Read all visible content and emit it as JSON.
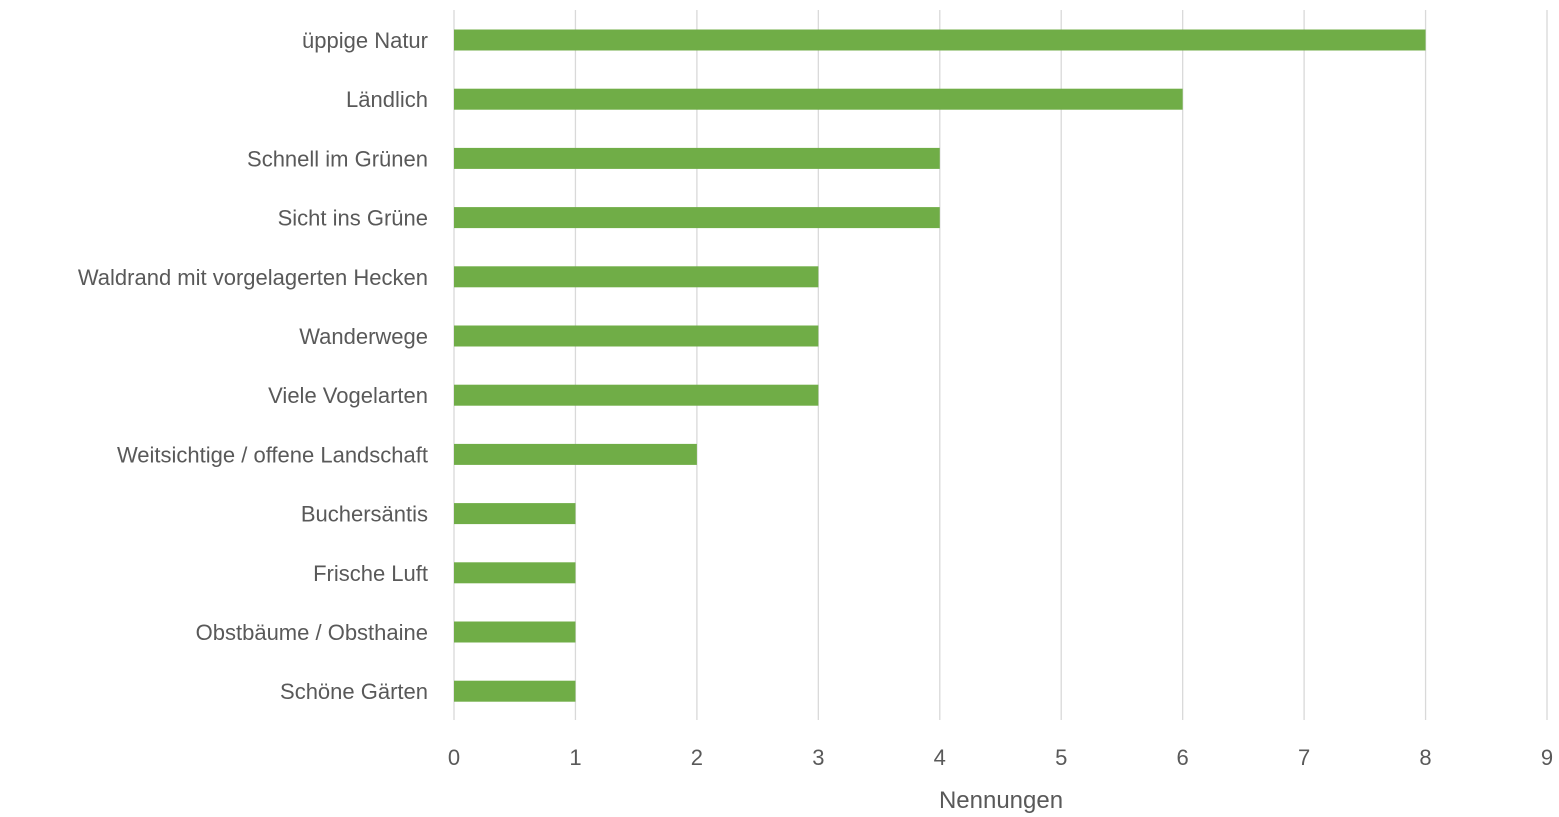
{
  "chart_data": {
    "type": "bar",
    "orientation": "horizontal",
    "title": "",
    "xlabel": "Nennungen",
    "ylabel": "",
    "xlim": [
      0,
      9
    ],
    "x_ticks": [
      "0",
      "1",
      "2",
      "3",
      "4",
      "5",
      "6",
      "7",
      "8",
      "9"
    ],
    "grid": true,
    "legend": "none",
    "bar_color": "#70ad47",
    "categories": [
      "üppige Natur",
      "Ländlich",
      "Schnell im Grünen",
      "Sicht ins Grüne",
      "Waldrand mit vorgelagerten Hecken",
      "Wanderwege",
      "Viele Vogelarten",
      "Weitsichtige / offene Landschaft",
      "Buchersäntis",
      "Frische Luft",
      "Obstbäume / Obsthaine",
      "Schöne Gärten"
    ],
    "values": [
      8,
      6,
      4,
      4,
      3,
      3,
      3,
      2,
      1,
      1,
      1,
      1
    ]
  }
}
